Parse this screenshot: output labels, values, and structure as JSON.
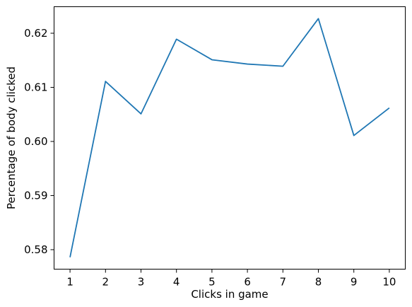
{
  "chart_data": {
    "type": "line",
    "title": "",
    "xlabel": "Clicks in game",
    "ylabel": "Percentage of body clicked",
    "x": [
      1,
      2,
      3,
      4,
      5,
      6,
      7,
      8,
      9,
      10
    ],
    "series": [
      {
        "values": [
          0.5786,
          0.6111,
          0.6051,
          0.6189,
          0.6151,
          0.6143,
          0.6139,
          0.6227,
          0.6011,
          0.6062
        ],
        "color": "#1f77b4"
      }
    ],
    "xticks": [
      1,
      2,
      3,
      4,
      5,
      6,
      7,
      8,
      9,
      10
    ],
    "xtick_labels": [
      "1",
      "2",
      "3",
      "4",
      "5",
      "6",
      "7",
      "8",
      "9",
      "10"
    ],
    "yticks": [
      0.58,
      0.59,
      0.6,
      0.61,
      0.62
    ],
    "ytick_labels": [
      "0.58",
      "0.59",
      "0.60",
      "0.61",
      "0.62"
    ],
    "xlim": [
      0.55,
      10.45
    ],
    "ylim": [
      0.5764,
      0.6249
    ],
    "grid": false,
    "legend": "none"
  }
}
